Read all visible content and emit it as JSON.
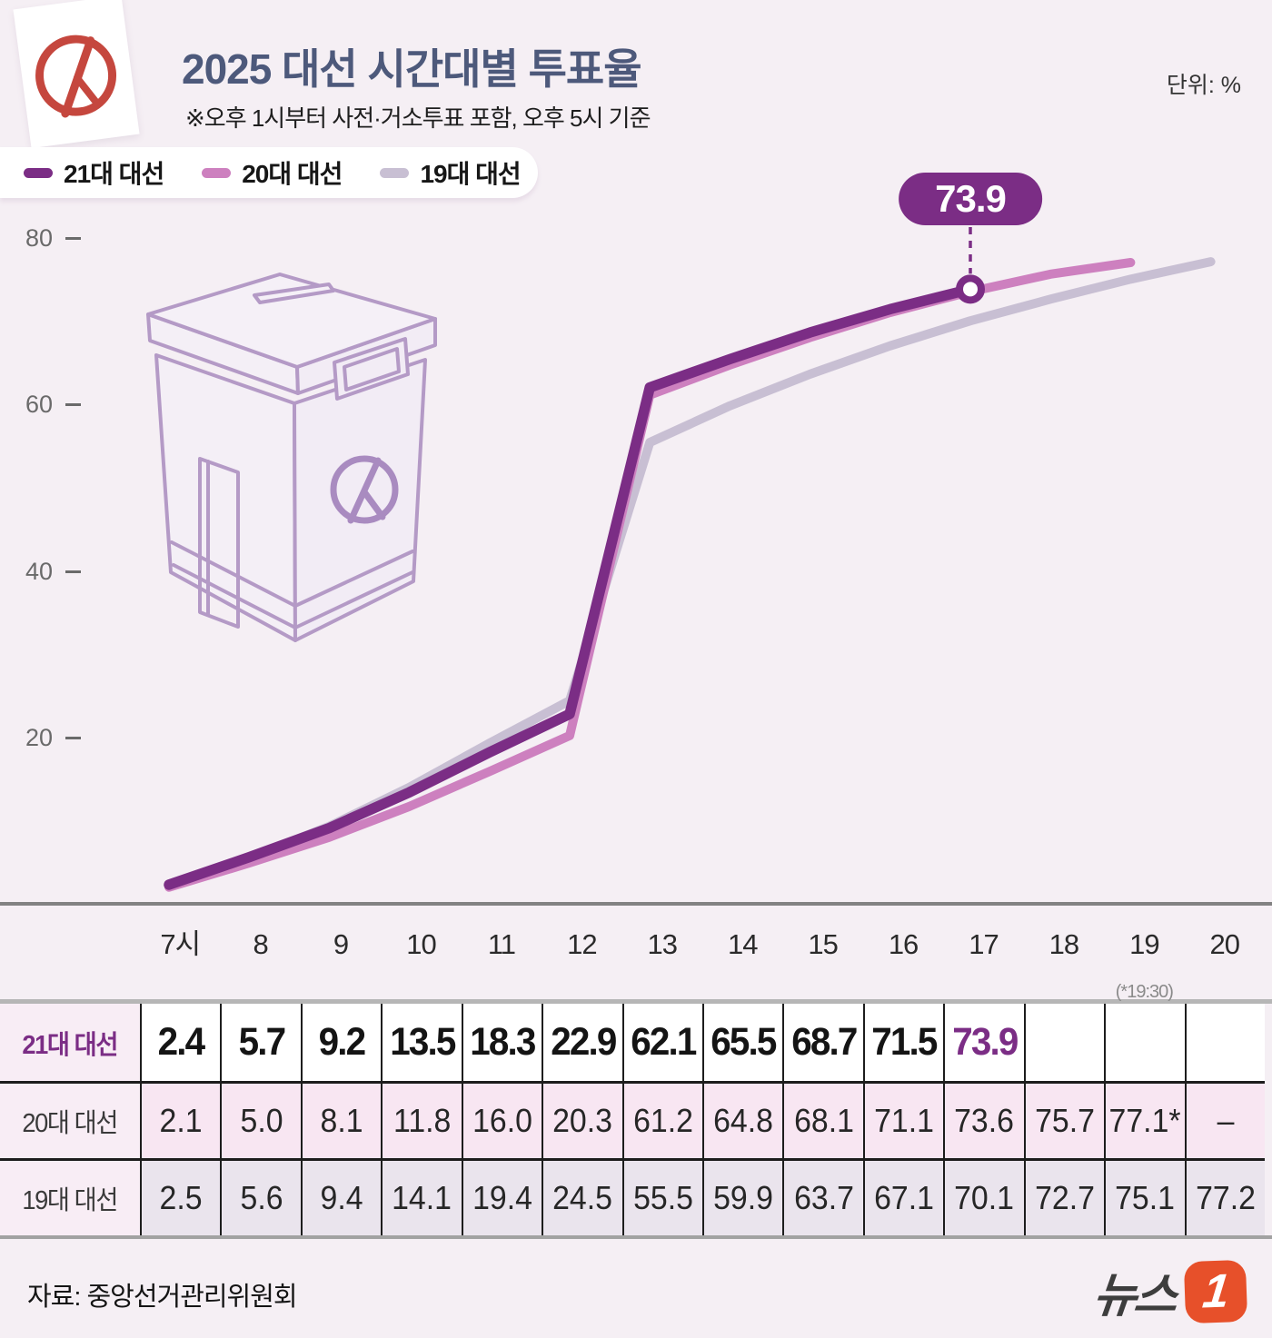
{
  "header": {
    "title": "2025 대선 시간대별 투표율",
    "subtitle": "※오후 1시부터 사전·거소투표 포함, 오후 5시 기준",
    "unit": "단위: %"
  },
  "legend": [
    {
      "label": "21대 대선",
      "color": "#7b2d85"
    },
    {
      "label": "20대 대선",
      "color": "#cd80bf"
    },
    {
      "label": "19대 대선",
      "color": "#c8bfd3"
    }
  ],
  "chart_data": {
    "type": "line",
    "categories": [
      "7시",
      "8",
      "9",
      "10",
      "11",
      "12",
      "13",
      "14",
      "15",
      "16",
      "17",
      "18",
      "19",
      "20"
    ],
    "series": [
      {
        "name": "21대 대선",
        "color": "#7b2d85",
        "width": 11.5,
        "values": [
          2.4,
          5.7,
          9.2,
          13.5,
          18.3,
          22.9,
          62.1,
          65.5,
          68.7,
          71.5,
          73.9
        ]
      },
      {
        "name": "20대 대선",
        "color": "#cd80bf",
        "width": 10,
        "values": [
          2.1,
          5.0,
          8.1,
          11.8,
          16.0,
          20.3,
          61.2,
          64.8,
          68.1,
          71.1,
          73.6,
          75.7,
          77.1
        ]
      },
      {
        "name": "19대 대선",
        "color": "#c8bfd3",
        "width": 10,
        "values": [
          2.5,
          5.6,
          9.4,
          14.1,
          19.4,
          24.5,
          55.5,
          59.9,
          63.7,
          67.1,
          70.1,
          72.7,
          75.1,
          77.2
        ]
      }
    ],
    "yticks": [
      80,
      60,
      40,
      20
    ],
    "ylim": [
      0,
      85
    ],
    "legend_position": "top-left",
    "grid": false,
    "annotation": {
      "series": "21대 대선",
      "category_index": 10,
      "value": 73.9,
      "label": "73.9"
    },
    "x_note": {
      "category_index": 12,
      "text": "(*19:30)"
    }
  },
  "table": {
    "rows": [
      {
        "label": "21대 대선",
        "highlight_index": 10,
        "cells": [
          "2.4",
          "5.7",
          "9.2",
          "13.5",
          "18.3",
          "22.9",
          "62.1",
          "65.5",
          "68.7",
          "71.5",
          "73.9",
          "",
          "",
          ""
        ]
      },
      {
        "label": "20대 대선",
        "cells": [
          "2.1",
          "5.0",
          "8.1",
          "11.8",
          "16.0",
          "20.3",
          "61.2",
          "64.8",
          "68.1",
          "71.1",
          "73.6",
          "75.7",
          "77.1*",
          "–"
        ]
      },
      {
        "label": "19대 대선",
        "cells": [
          "2.5",
          "5.6",
          "9.4",
          "14.1",
          "19.4",
          "24.5",
          "55.5",
          "59.9",
          "63.7",
          "67.1",
          "70.1",
          "72.7",
          "75.1",
          "77.2"
        ]
      }
    ]
  },
  "footer": {
    "source": "자료: 중앙선거관리위원회",
    "logo_text": "뉴스",
    "logo_badge": "1"
  }
}
